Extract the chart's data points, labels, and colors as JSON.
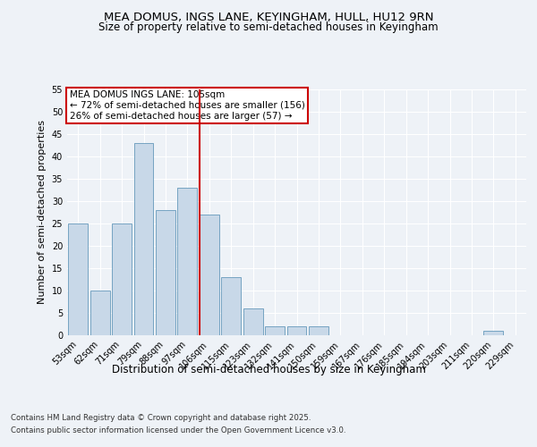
{
  "title1": "MEA DOMUS, INGS LANE, KEYINGHAM, HULL, HU12 9RN",
  "title2": "Size of property relative to semi-detached houses in Keyingham",
  "xlabel": "Distribution of semi-detached houses by size in Keyingham",
  "ylabel": "Number of semi-detached properties",
  "bins": [
    "53sqm",
    "62sqm",
    "71sqm",
    "79sqm",
    "88sqm",
    "97sqm",
    "106sqm",
    "115sqm",
    "123sqm",
    "132sqm",
    "141sqm",
    "150sqm",
    "159sqm",
    "167sqm",
    "176sqm",
    "185sqm",
    "194sqm",
    "203sqm",
    "211sqm",
    "220sqm",
    "229sqm"
  ],
  "values": [
    25,
    10,
    25,
    43,
    28,
    33,
    27,
    13,
    6,
    2,
    2,
    2,
    0,
    0,
    0,
    0,
    0,
    0,
    0,
    1,
    0
  ],
  "bar_color": "#c8d8e8",
  "bar_edge_color": "#6699bb",
  "vline_idx": 6,
  "vline_color": "#cc0000",
  "annotation_title": "MEA DOMUS INGS LANE: 105sqm",
  "annotation_line1": "← 72% of semi-detached houses are smaller (156)",
  "annotation_line2": "26% of semi-detached houses are larger (57) →",
  "annotation_box_color": "#cc0000",
  "ylim": [
    0,
    55
  ],
  "yticks": [
    0,
    5,
    10,
    15,
    20,
    25,
    30,
    35,
    40,
    45,
    50,
    55
  ],
  "footnote1": "Contains HM Land Registry data © Crown copyright and database right 2025.",
  "footnote2": "Contains public sector information licensed under the Open Government Licence v3.0.",
  "bg_color": "#eef2f7",
  "plot_bg_color": "#eef2f7",
  "grid_color": "#ffffff"
}
